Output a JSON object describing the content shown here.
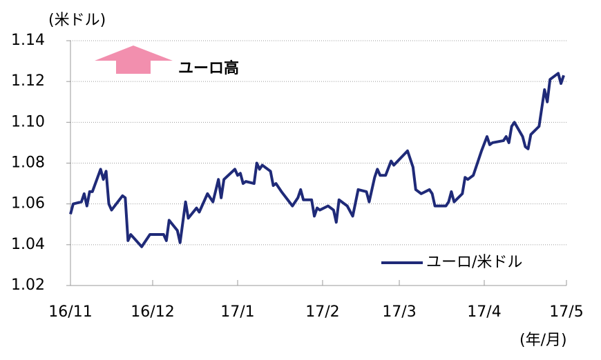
{
  "chart_data": {
    "type": "line",
    "y_label": "(米ドル)",
    "x_label": "(年/月)",
    "annotation": "ユーロ高",
    "xlim": [
      0,
      181
    ],
    "xticks": [
      {
        "value": 0,
        "label": "16/11"
      },
      {
        "value": 30,
        "label": "16/12"
      },
      {
        "value": 61,
        "label": "17/1"
      },
      {
        "value": 92,
        "label": "17/2"
      },
      {
        "value": 120,
        "label": "17/3"
      },
      {
        "value": 151,
        "label": "17/4"
      },
      {
        "value": 181,
        "label": "17/5"
      }
    ],
    "ylim": [
      1.02,
      1.14
    ],
    "yticks": [
      1.02,
      1.04,
      1.06,
      1.08,
      {
        "value": 1.1,
        "label": "1.10"
      },
      1.12,
      1.14
    ],
    "grid": true,
    "legend": "lower right",
    "series": [
      {
        "name": "ユーロ/米ドル",
        "color": "#1f2a78",
        "x": [
          0,
          1,
          4,
          5,
          6,
          7,
          8,
          11,
          12,
          13,
          14,
          15,
          19,
          20,
          21,
          22,
          26,
          29,
          34,
          35,
          36,
          39,
          40,
          42,
          43,
          46,
          47,
          50,
          52,
          54,
          55,
          56,
          60,
          61,
          62,
          63,
          64,
          67,
          68,
          69,
          70,
          73,
          74,
          75,
          77,
          81,
          83,
          84,
          85,
          88,
          89,
          90,
          91,
          94,
          96,
          97,
          98,
          101,
          103,
          105,
          108,
          109,
          111,
          112,
          113,
          115,
          117,
          118,
          123,
          125,
          126,
          128,
          131,
          132,
          133,
          137,
          138,
          139,
          140,
          143,
          144,
          145,
          147,
          150,
          152,
          153,
          154,
          158,
          159,
          160,
          161,
          162,
          165,
          166,
          167,
          168,
          171,
          173,
          174,
          175,
          178,
          179,
          180
        ],
        "values": [
          1.055,
          1.06,
          1.061,
          1.065,
          1.059,
          1.066,
          1.066,
          1.077,
          1.072,
          1.076,
          1.06,
          1.057,
          1.064,
          1.063,
          1.042,
          1.045,
          1.039,
          1.045,
          1.045,
          1.042,
          1.052,
          1.047,
          1.041,
          1.061,
          1.053,
          1.058,
          1.056,
          1.065,
          1.061,
          1.072,
          1.063,
          1.072,
          1.077,
          1.074,
          1.075,
          1.07,
          1.071,
          1.07,
          1.08,
          1.077,
          1.079,
          1.076,
          1.069,
          1.07,
          1.066,
          1.059,
          1.063,
          1.067,
          1.062,
          1.062,
          1.054,
          1.058,
          1.057,
          1.059,
          1.057,
          1.051,
          1.062,
          1.059,
          1.054,
          1.067,
          1.066,
          1.061,
          1.073,
          1.077,
          1.074,
          1.074,
          1.081,
          1.079,
          1.086,
          1.078,
          1.067,
          1.065,
          1.067,
          1.065,
          1.059,
          1.059,
          1.061,
          1.066,
          1.061,
          1.065,
          1.073,
          1.072,
          1.074,
          1.086,
          1.093,
          1.089,
          1.09,
          1.091,
          1.093,
          1.09,
          1.098,
          1.1,
          1.093,
          1.088,
          1.087,
          1.094,
          1.098,
          1.116,
          1.11,
          1.121,
          1.124,
          1.119,
          1.123
        ]
      }
    ]
  }
}
